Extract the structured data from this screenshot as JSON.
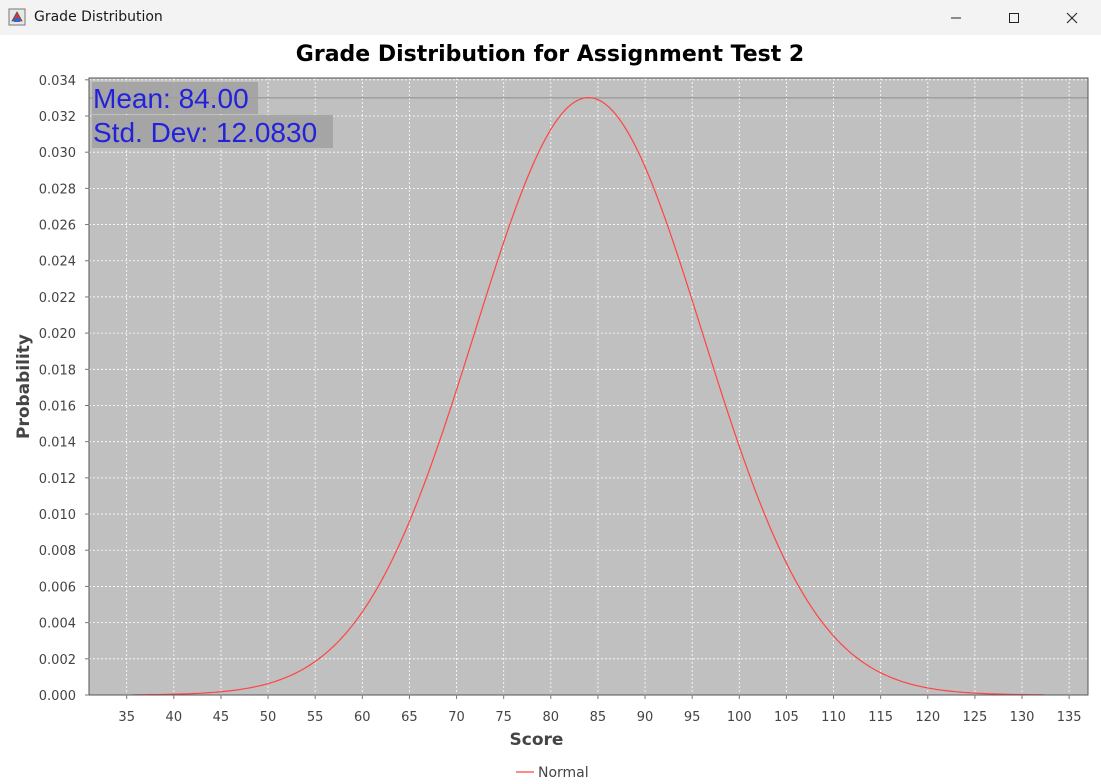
{
  "window": {
    "title": "Grade Distribution",
    "app_icon": "java-cup-icon",
    "controls": {
      "minimize": "minimize-icon",
      "maximize": "maximize-icon",
      "close": "close-icon"
    }
  },
  "chart_data": {
    "type": "line",
    "title": "Grade Distribution for Assignment Test 2",
    "xlabel": "Score",
    "ylabel": "Probability",
    "xlim": [
      31,
      137
    ],
    "ylim": [
      0,
      0.0341
    ],
    "x_ticks": [
      "35",
      "40",
      "45",
      "50",
      "55",
      "60",
      "65",
      "70",
      "75",
      "80",
      "85",
      "90",
      "95",
      "100",
      "105",
      "110",
      "115",
      "120",
      "125",
      "130",
      "135"
    ],
    "y_ticks": [
      "0.000",
      "0.002",
      "0.004",
      "0.006",
      "0.008",
      "0.010",
      "0.012",
      "0.014",
      "0.016",
      "0.018",
      "0.020",
      "0.022",
      "0.024",
      "0.026",
      "0.028",
      "0.030",
      "0.032",
      "0.034"
    ],
    "grid": true,
    "legend_position": "bottom-center",
    "plot_background": "#c0c0c0",
    "annotations": {
      "mean": "Mean: 84.00",
      "std": "Std. Dev: 12.0830",
      "color": "#2222dd"
    },
    "marker_line_y": 0.033,
    "series": [
      {
        "name": "Normal",
        "color": "#ff4444",
        "distribution": "normal",
        "mean": 84.0,
        "std": 12.083,
        "x_range": [
          35.6,
          132.4
        ]
      }
    ]
  }
}
